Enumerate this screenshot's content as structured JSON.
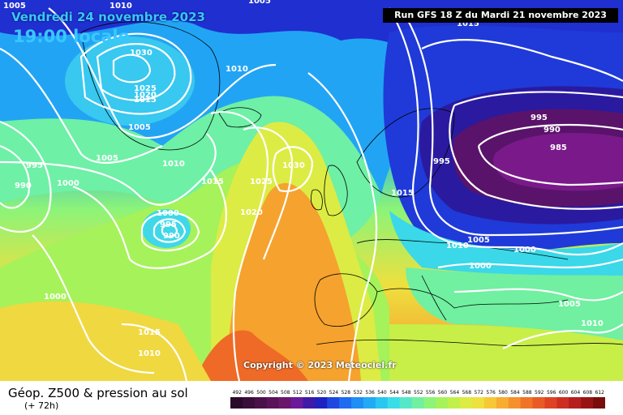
{
  "header": {
    "date": "Vendredi 24 novembre 2023",
    "local_time": "19:00 locale",
    "run": "Run GFS 18 Z du Mardi 21 novembre 2023"
  },
  "copyright": "Copyright © 2023 Meteociel.fr",
  "legend": {
    "title": "Géop. Z500 & pression au sol",
    "lead_time": "(+ 72h)",
    "colorbar_ticks": [
      "492",
      "496",
      "500",
      "504",
      "508",
      "512",
      "516",
      "520",
      "524",
      "528",
      "532",
      "536",
      "540",
      "544",
      "548",
      "552",
      "556",
      "560",
      "564",
      "568",
      "572",
      "576",
      "580",
      "584",
      "588",
      "592",
      "596",
      "600",
      "604",
      "608",
      "612"
    ],
    "colorbar_colors": [
      "#2a0a2a",
      "#3a0d3a",
      "#4a104a",
      "#5a135a",
      "#6a166a",
      "#6a1a9a",
      "#3f1aa8",
      "#1f22c0",
      "#1f48e0",
      "#1e6cf0",
      "#1f8ef5",
      "#22aaf5",
      "#28c6f0",
      "#3adce8",
      "#55e8c8",
      "#70f0a0",
      "#8cf478",
      "#a6f25a",
      "#c2f04a",
      "#dcec44",
      "#eee03e",
      "#f6c838",
      "#f8ac32",
      "#f6902c",
      "#f07428",
      "#e85a26",
      "#de4224",
      "#cc2e22",
      "#b41e1e",
      "#981414",
      "#7a0c0c"
    ]
  },
  "pressure_labels": [
    {
      "text": "1005",
      "pos": "tl-a"
    },
    {
      "text": "1010",
      "pos": "tl-b"
    },
    {
      "text": "1005",
      "pos": "tl-c"
    },
    {
      "text": "1030",
      "pos": "gr-a"
    },
    {
      "text": "1010",
      "pos": "gr-b"
    },
    {
      "text": "1025",
      "pos": "gr-c"
    },
    {
      "text": "1020",
      "pos": "gr-d"
    },
    {
      "text": "1015",
      "pos": "gr-e"
    },
    {
      "text": "1005",
      "pos": "w-a"
    },
    {
      "text": "1005",
      "pos": "w-b"
    },
    {
      "text": "995",
      "pos": "w-c"
    },
    {
      "text": "990",
      "pos": "w-d"
    },
    {
      "text": "1000",
      "pos": "w-e"
    },
    {
      "text": "1010",
      "pos": "at-a"
    },
    {
      "text": "1000",
      "pos": "low-a"
    },
    {
      "text": "995",
      "pos": "low-b"
    },
    {
      "text": "990",
      "pos": "low-c"
    },
    {
      "text": "1015",
      "pos": "at-b"
    },
    {
      "text": "1025",
      "pos": "at-c"
    },
    {
      "text": "1030",
      "pos": "at-d"
    },
    {
      "text": "1020",
      "pos": "at-e"
    },
    {
      "text": "1015",
      "pos": "eu-a"
    },
    {
      "text": "995",
      "pos": "eu-b"
    },
    {
      "text": "995",
      "pos": "ru-a"
    },
    {
      "text": "990",
      "pos": "ru-b"
    },
    {
      "text": "985",
      "pos": "ru-c"
    },
    {
      "text": "1010",
      "pos": "eu-c"
    },
    {
      "text": "1005",
      "pos": "eu-d"
    },
    {
      "text": "1000",
      "pos": "eu-e"
    },
    {
      "text": "1000",
      "pos": "eu-f"
    },
    {
      "text": "1005",
      "pos": "me-a"
    },
    {
      "text": "1010",
      "pos": "me-b"
    },
    {
      "text": "1000",
      "pos": "sw-a"
    },
    {
      "text": "1015",
      "pos": "sw-b"
    },
    {
      "text": "1010",
      "pos": "sw-c"
    },
    {
      "text": "1015",
      "pos": "top-a"
    }
  ]
}
